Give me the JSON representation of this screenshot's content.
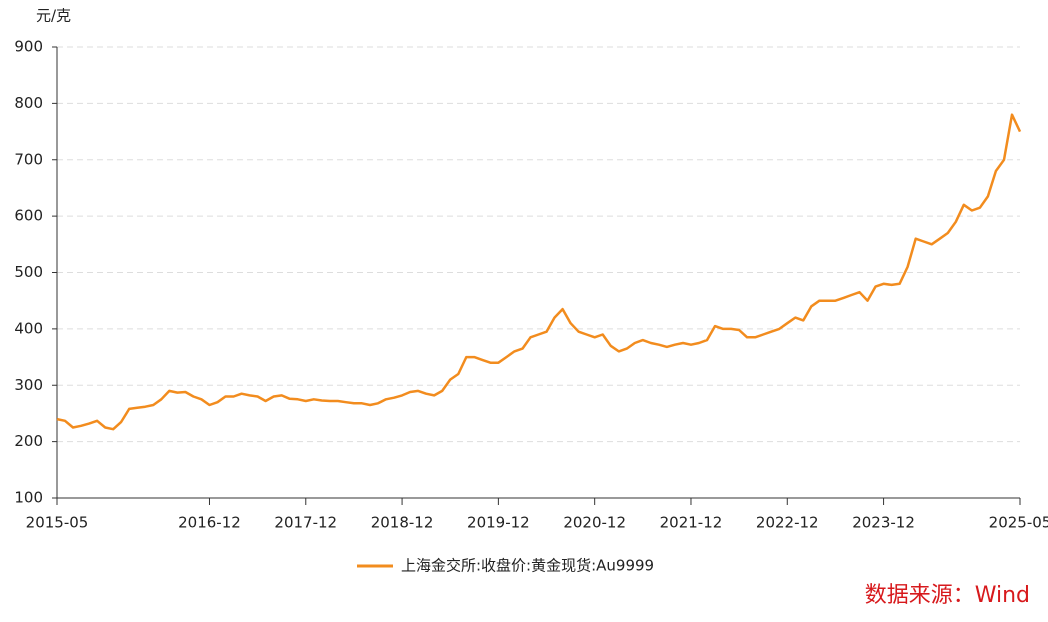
{
  "chart_data": {
    "type": "line",
    "y_label": "元/克",
    "source": "数据来源：Wind",
    "x": [
      "2015-05",
      "2015-06",
      "2015-07",
      "2015-08",
      "2015-09",
      "2015-10",
      "2015-11",
      "2015-12",
      "2016-01",
      "2016-02",
      "2016-03",
      "2016-04",
      "2016-05",
      "2016-06",
      "2016-07",
      "2016-08",
      "2016-09",
      "2016-10",
      "2016-11",
      "2016-12",
      "2017-01",
      "2017-02",
      "2017-03",
      "2017-04",
      "2017-05",
      "2017-06",
      "2017-07",
      "2017-08",
      "2017-09",
      "2017-10",
      "2017-11",
      "2017-12",
      "2018-01",
      "2018-02",
      "2018-03",
      "2018-04",
      "2018-05",
      "2018-06",
      "2018-07",
      "2018-08",
      "2018-09",
      "2018-10",
      "2018-11",
      "2018-12",
      "2019-01",
      "2019-02",
      "2019-03",
      "2019-04",
      "2019-05",
      "2019-06",
      "2019-07",
      "2019-08",
      "2019-09",
      "2019-10",
      "2019-11",
      "2019-12",
      "2020-01",
      "2020-02",
      "2020-03",
      "2020-04",
      "2020-05",
      "2020-06",
      "2020-07",
      "2020-08",
      "2020-09",
      "2020-10",
      "2020-11",
      "2020-12",
      "2021-01",
      "2021-02",
      "2021-03",
      "2021-04",
      "2021-05",
      "2021-06",
      "2021-07",
      "2021-08",
      "2021-09",
      "2021-10",
      "2021-11",
      "2021-12",
      "2022-01",
      "2022-02",
      "2022-03",
      "2022-04",
      "2022-05",
      "2022-06",
      "2022-07",
      "2022-08",
      "2022-09",
      "2022-10",
      "2022-11",
      "2022-12",
      "2023-01",
      "2023-02",
      "2023-03",
      "2023-04",
      "2023-05",
      "2023-06",
      "2023-07",
      "2023-08",
      "2023-09",
      "2023-10",
      "2023-11",
      "2023-12",
      "2024-01",
      "2024-02",
      "2024-03",
      "2024-04",
      "2024-05",
      "2024-06",
      "2024-07",
      "2024-08",
      "2024-09",
      "2024-10",
      "2024-11",
      "2024-12",
      "2025-01",
      "2025-02",
      "2025-03",
      "2025-04",
      "2025-05"
    ],
    "series": [
      {
        "name": "上海金交所:收盘价:黄金现货:Au9999",
        "color": "#f28c1e",
        "values": [
          240,
          237,
          225,
          228,
          232,
          237,
          225,
          222,
          235,
          258,
          260,
          262,
          265,
          275,
          290,
          287,
          288,
          280,
          275,
          265,
          270,
          280,
          280,
          285,
          282,
          280,
          272,
          280,
          282,
          276,
          275,
          272,
          275,
          273,
          272,
          272,
          270,
          268,
          268,
          265,
          268,
          275,
          278,
          282,
          288,
          290,
          285,
          282,
          290,
          310,
          320,
          350,
          350,
          345,
          340,
          340,
          350,
          360,
          365,
          385,
          390,
          395,
          420,
          435,
          410,
          395,
          390,
          385,
          390,
          370,
          360,
          365,
          375,
          380,
          375,
          372,
          368,
          372,
          375,
          372,
          375,
          380,
          405,
          400,
          400,
          398,
          385,
          385,
          390,
          395,
          400,
          410,
          420,
          415,
          440,
          450,
          450,
          450,
          455,
          460,
          465,
          450,
          475,
          480,
          478,
          480,
          510,
          560,
          555,
          550,
          560,
          570,
          590,
          620,
          610,
          615,
          635,
          680,
          700,
          780,
          750
        ]
      }
    ],
    "xticks": [
      "2015-05",
      "2016-12",
      "2017-12",
      "2018-12",
      "2019-12",
      "2020-12",
      "2021-12",
      "2022-12",
      "2023-12",
      "2025-05"
    ],
    "ylim": [
      100,
      900
    ],
    "yticks": [
      100,
      200,
      300,
      400,
      500,
      600,
      700,
      800,
      900
    ],
    "grid": true,
    "legend": "bottom"
  }
}
